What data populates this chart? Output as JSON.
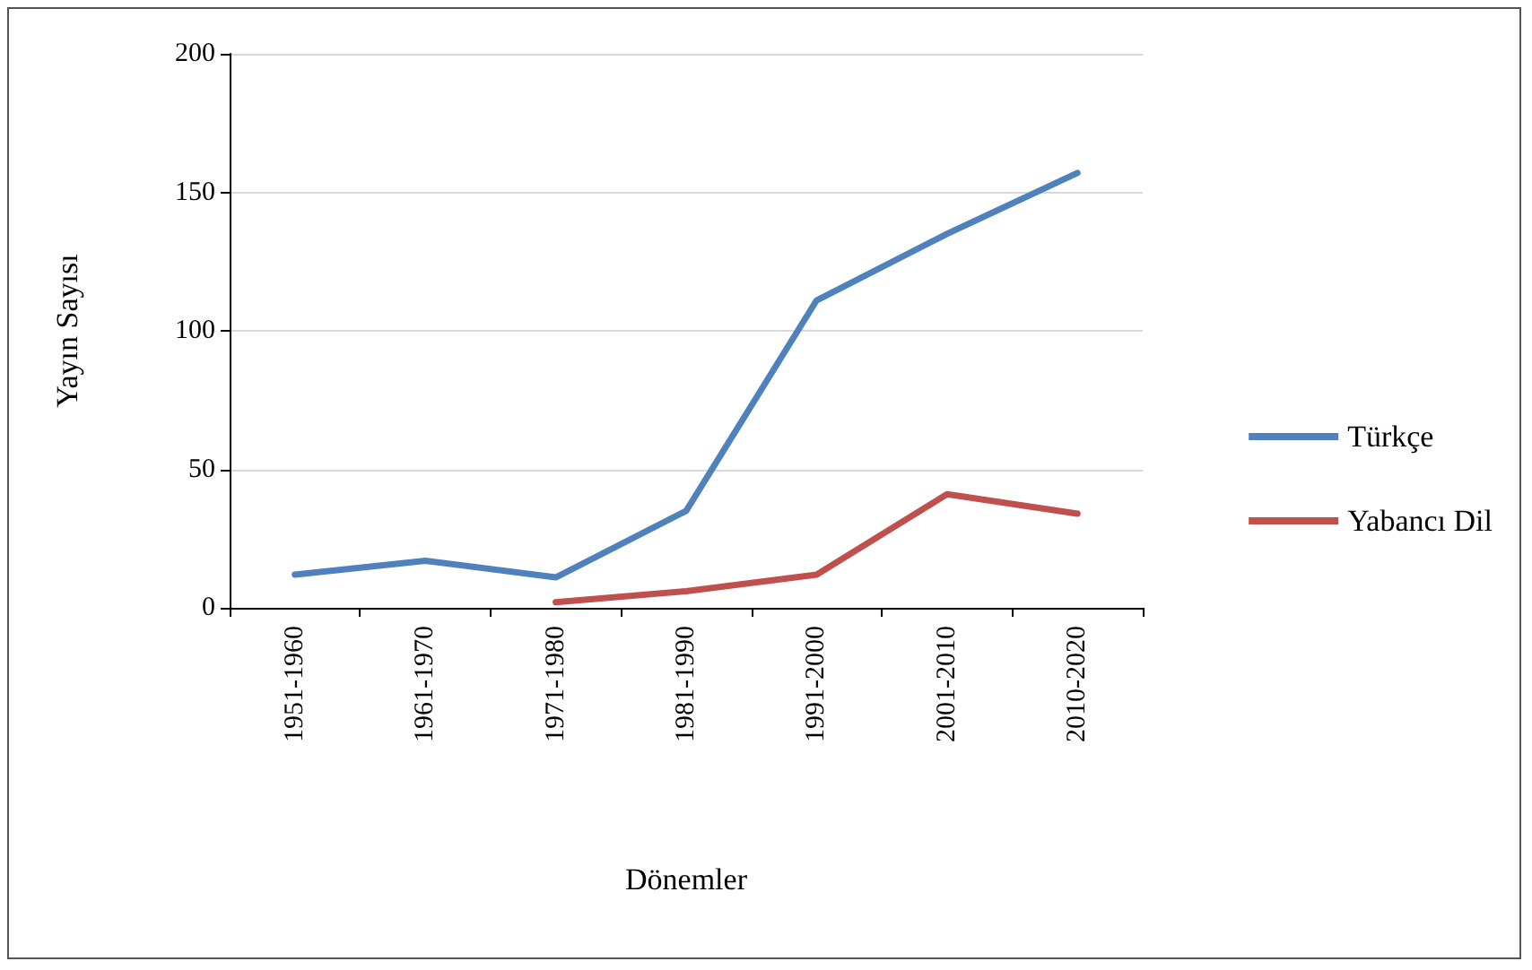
{
  "chart_data": {
    "type": "line",
    "xlabel": "Dönemler",
    "ylabel": "Yayın Sayısı",
    "categories": [
      "1951-1960",
      "1961-1970",
      "1971-1980",
      "1981-1990",
      "1991-2000",
      "2001-2010",
      "2010-2020"
    ],
    "series": [
      {
        "name": "Türkçe",
        "color": "#4f81bd",
        "values": [
          12,
          17,
          11,
          35,
          111,
          135,
          157
        ]
      },
      {
        "name": "Yabancı Dil",
        "color": "#c0504d",
        "values": [
          null,
          null,
          2,
          6,
          12,
          41,
          34
        ]
      }
    ],
    "ylim": [
      0,
      200
    ],
    "yticks": [
      0,
      50,
      100,
      150,
      200
    ],
    "grid": "y",
    "legend": "right",
    "marker": "none",
    "line_style": "solid"
  }
}
